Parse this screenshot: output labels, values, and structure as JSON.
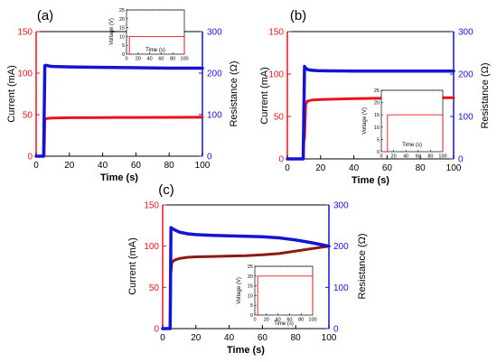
{
  "colors": {
    "current": "#e8141c",
    "current_c": "#8b1a12",
    "resistance": "#1414d2",
    "axis": "#000000",
    "inset_line": "#e8141c"
  },
  "chart_data": [
    {
      "panel_label": "(a)",
      "type": "line",
      "xlabel": "Time (s)",
      "ylabel_left": "Current (mA)",
      "ylabel_right": "Resistance (Ω)",
      "xlim": [
        0,
        100
      ],
      "ylim_left": [
        0,
        150
      ],
      "ylim_right": [
        0,
        300
      ],
      "xticks": [
        "0",
        "20",
        "40",
        "60",
        "80",
        "100"
      ],
      "yticks_left": [
        "0",
        "50",
        "100",
        "150"
      ],
      "yticks_right": [
        "0",
        "100",
        "200",
        "300"
      ],
      "series": [
        {
          "axis": "left",
          "x": [
            0,
            4.8,
            5.2,
            7,
            10,
            20,
            40,
            60,
            80,
            100
          ],
          "y": [
            0,
            0,
            44.5,
            45.5,
            46,
            46.3,
            46.5,
            46.6,
            46.7,
            46.8
          ]
        },
        {
          "axis": "right",
          "x": [
            0,
            4.5,
            5.2,
            6,
            8,
            10,
            20,
            40,
            60,
            80,
            100
          ],
          "y": [
            0,
            0,
            218,
            219,
            217,
            216,
            215,
            214,
            213,
            212,
            212
          ]
        }
      ],
      "inset": {
        "ylabel": "Voltage (V)",
        "xlabel": "Time (s)",
        "xlim": [
          0,
          100
        ],
        "ylim": [
          0,
          25
        ],
        "xticks": [
          "0",
          "20",
          "40",
          "60",
          "80",
          "100"
        ],
        "yticks": [
          "0",
          "5",
          "10",
          "15",
          "20",
          "25"
        ],
        "x": [
          0,
          5,
          5,
          100,
          100
        ],
        "y": [
          0,
          0,
          10,
          10,
          0
        ]
      }
    },
    {
      "panel_label": "(b)",
      "type": "line",
      "xlabel": "Time (s)",
      "ylabel_left": "Current (mA)",
      "ylabel_right": "Resistance (Ω)",
      "xlim": [
        0,
        100
      ],
      "ylim_left": [
        0,
        150
      ],
      "ylim_right": [
        0,
        300
      ],
      "xticks": [
        "0",
        "20",
        "40",
        "60",
        "80",
        "100"
      ],
      "yticks_left": [
        "0",
        "50",
        "100",
        "150"
      ],
      "yticks_right": [
        "0",
        "100",
        "200",
        "300"
      ],
      "series": [
        {
          "axis": "left",
          "x": [
            0,
            9.5,
            10,
            10.3,
            11,
            12,
            15,
            20,
            40,
            60,
            80,
            100
          ],
          "y": [
            0,
            0,
            24,
            24,
            64,
            68,
            69.5,
            70,
            71,
            71.5,
            72,
            72
          ]
        },
        {
          "axis": "right",
          "x": [
            0,
            9.5,
            10.3,
            11,
            12,
            14,
            18,
            25,
            40,
            60,
            80,
            100
          ],
          "y": [
            0,
            0,
            218,
            214,
            211,
            209,
            208,
            207.5,
            207,
            207,
            207,
            207
          ]
        }
      ],
      "inset": {
        "ylabel": "Voltage (V)",
        "xlabel": "Time (s)",
        "xlim": [
          0,
          100
        ],
        "ylim": [
          0,
          25
        ],
        "xticks": [
          "0",
          "20",
          "40",
          "60",
          "80",
          "100"
        ],
        "yticks": [
          "0",
          "5",
          "10",
          "15",
          "20",
          "25"
        ],
        "x": [
          0,
          10,
          10,
          100,
          100
        ],
        "y": [
          0,
          0,
          15,
          15,
          0
        ]
      }
    },
    {
      "panel_label": "(c)",
      "type": "line",
      "xlabel": "Time (s)",
      "ylabel_left": "Current (mA)",
      "ylabel_right": "Resistance (Ω)",
      "xlim": [
        0,
        100
      ],
      "ylim_left": [
        0,
        150
      ],
      "ylim_right": [
        0,
        300
      ],
      "xticks": [
        "0",
        "20",
        "40",
        "60",
        "80",
        "100"
      ],
      "yticks_left": [
        "0",
        "50",
        "100",
        "150"
      ],
      "yticks_right": [
        "0",
        "100",
        "200",
        "300"
      ],
      "series": [
        {
          "axis": "left",
          "x": [
            0,
            4.5,
            4.8,
            5.5,
            7,
            10,
            15,
            20,
            30,
            40,
            50,
            60,
            70,
            80,
            90,
            100
          ],
          "y": [
            0,
            0,
            64,
            80,
            83,
            85,
            86.5,
            87,
            87.5,
            88,
            88.5,
            89.5,
            91,
            94,
            97,
            100
          ]
        },
        {
          "axis": "right",
          "x": [
            0,
            4.5,
            5,
            6,
            8,
            10,
            15,
            20,
            30,
            40,
            50,
            60,
            70,
            80,
            90,
            100
          ],
          "y": [
            0,
            0,
            245,
            242,
            238,
            234,
            230,
            228,
            226,
            225,
            224,
            223,
            220,
            215,
            208,
            200
          ]
        }
      ],
      "inset": {
        "ylabel": "Voltage (V)",
        "xlabel": "Time (s)",
        "xlim": [
          0,
          100
        ],
        "ylim": [
          0,
          25
        ],
        "xticks": [
          "0",
          "20",
          "40",
          "60",
          "80",
          "100"
        ],
        "yticks": [
          "0",
          "5",
          "10",
          "15",
          "20",
          "25"
        ],
        "x": [
          0,
          5,
          5,
          100,
          100
        ],
        "y": [
          0,
          0,
          20,
          20,
          0
        ]
      }
    }
  ]
}
